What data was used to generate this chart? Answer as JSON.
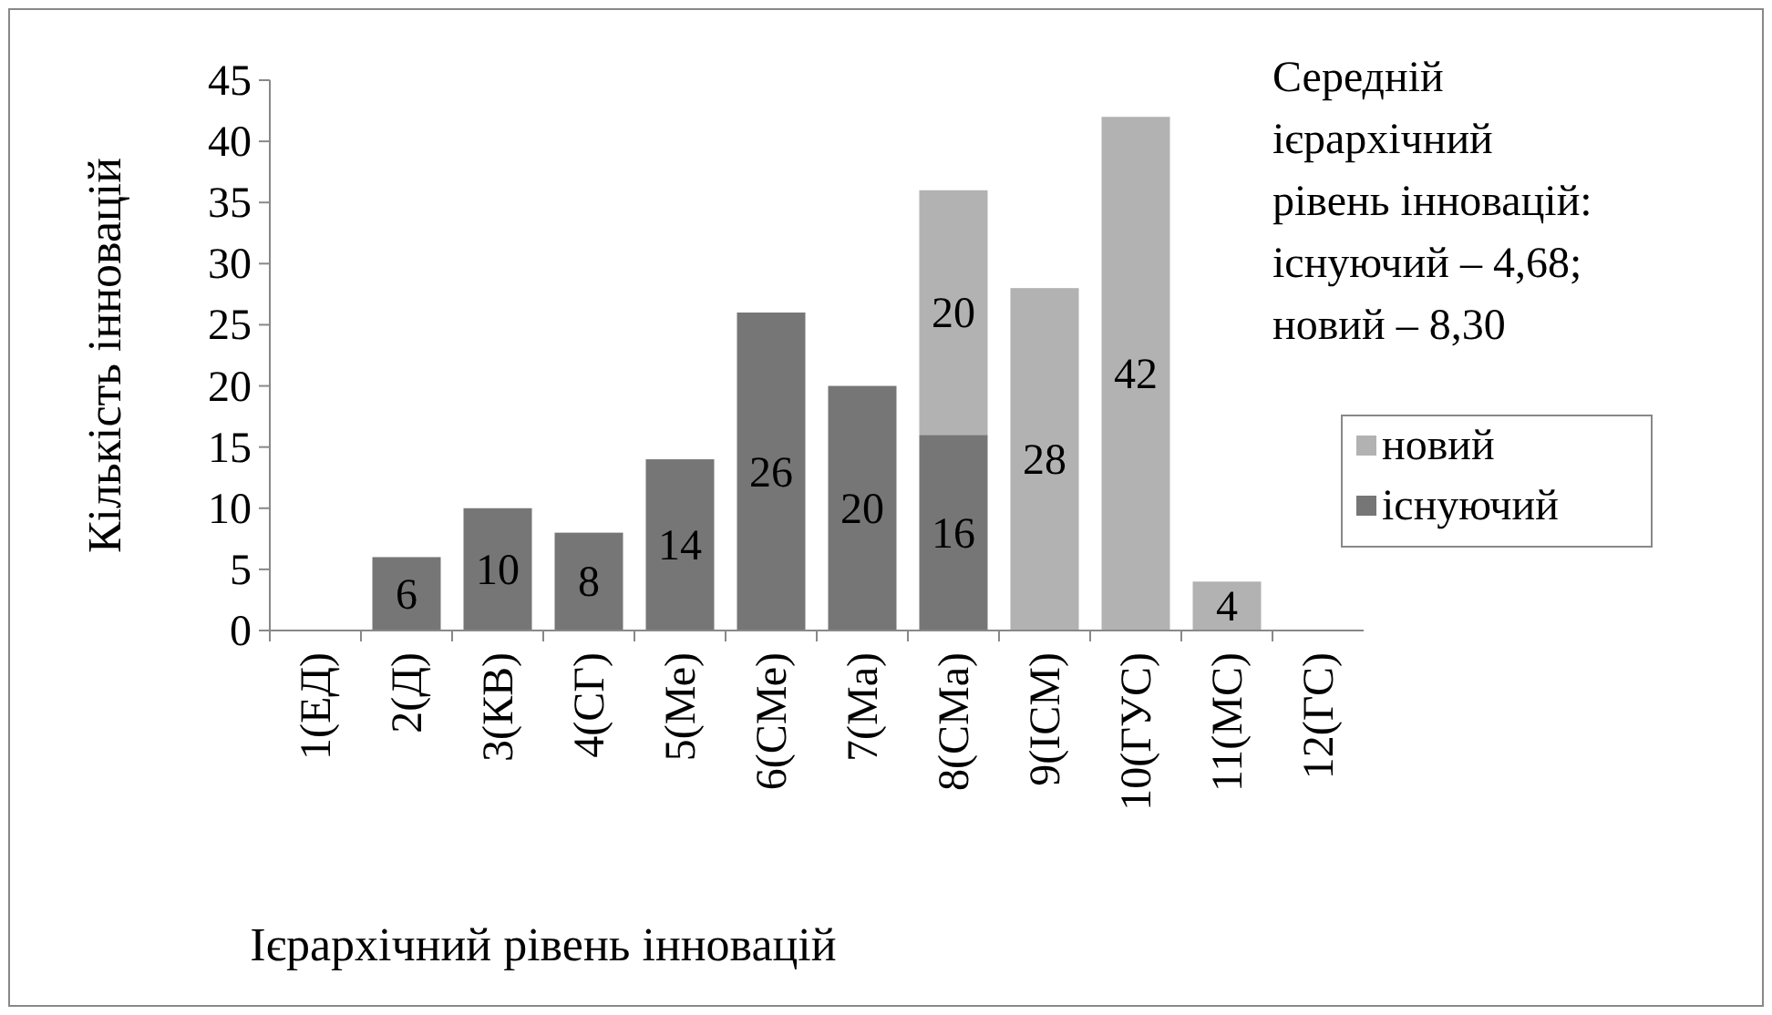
{
  "chart_data": {
    "type": "bar",
    "stacked": true,
    "xlabel": "Ієрархічний рівень інновацій",
    "ylabel": "Кількість інновацій",
    "categories": [
      "1(ЕД)",
      "2(Д)",
      "3(КВ)",
      "4(СГ)",
      "5(Ме)",
      "6(СМе)",
      "7(Ма)",
      "8(СМа)",
      "9(ІСМ)",
      "10(ГУС)",
      "11(МС)",
      "12(ГС)"
    ],
    "series": [
      {
        "name": "існуючий",
        "color": "#767676",
        "values": [
          null,
          6,
          10,
          8,
          14,
          26,
          20,
          16,
          null,
          null,
          null,
          null
        ]
      },
      {
        "name": "новий",
        "color": "#b2b2b2",
        "values": [
          null,
          null,
          null,
          null,
          null,
          null,
          null,
          20,
          28,
          42,
          4,
          null
        ]
      }
    ],
    "ylim": [
      0,
      45
    ],
    "yticks": [
      0,
      5,
      10,
      15,
      20,
      25,
      30,
      35,
      40,
      45
    ],
    "data_labels": true,
    "legend": "right",
    "grid": false,
    "annotations": [
      "Середній\nієрархічний\nрівень інновацій:\nіснуючий – 4,68;\nновий – 8,30"
    ]
  }
}
